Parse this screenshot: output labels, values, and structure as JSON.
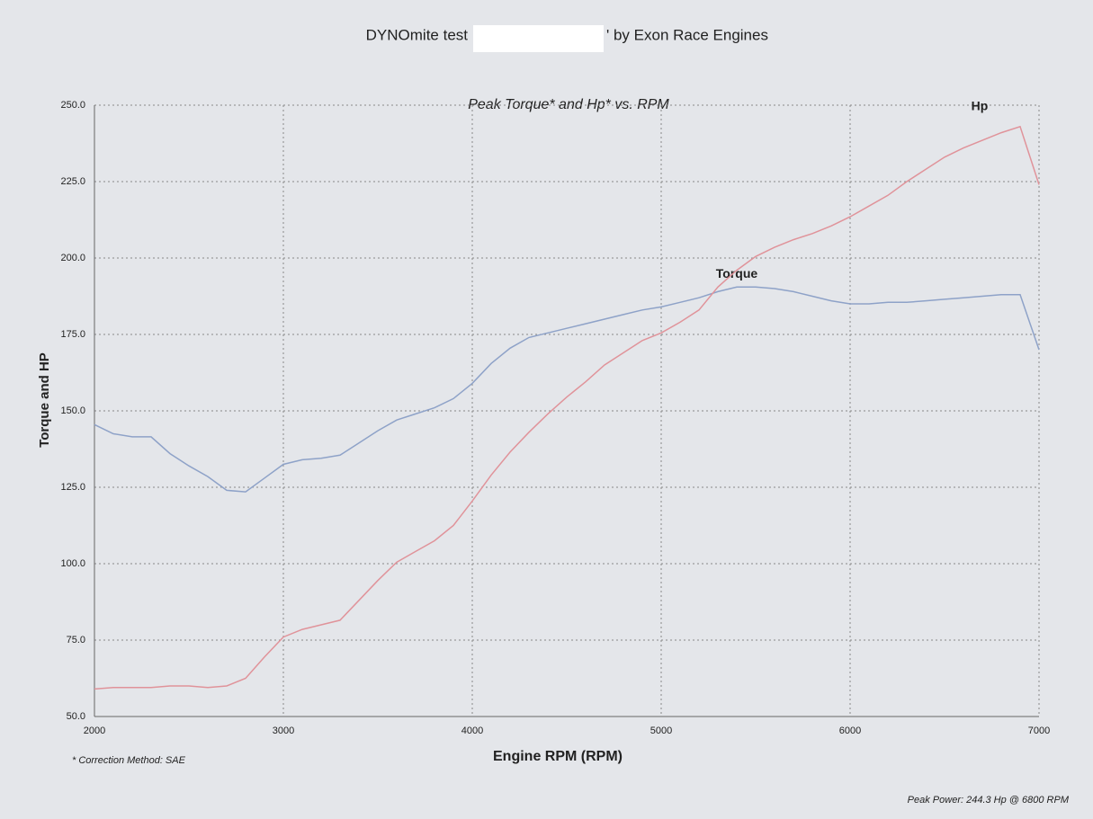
{
  "chart_data": {
    "type": "line",
    "title": "DYNOmite test",
    "title_after_redaction": "' by Exon Race Engines",
    "subtitle": "Peak Torque* and Hp* vs. RPM",
    "xlabel": "Engine RPM (RPM)",
    "ylabel": "Torque and HP",
    "footnote": "* Correction Method: SAE",
    "peak_note": "Peak Power: 244.3 Hp @ 6800 RPM",
    "x": [
      2000,
      2100,
      2200,
      2300,
      2400,
      2500,
      2600,
      2700,
      2800,
      2900,
      3000,
      3100,
      3200,
      3300,
      3400,
      3500,
      3600,
      3700,
      3800,
      3900,
      4000,
      4100,
      4200,
      4300,
      4400,
      4500,
      4600,
      4700,
      4800,
      4900,
      5000,
      5100,
      5200,
      5300,
      5400,
      5500,
      5600,
      5700,
      5800,
      5900,
      6000,
      6100,
      6200,
      6300,
      6400,
      6500,
      6600,
      6700,
      6800,
      6900,
      7000
    ],
    "series": [
      {
        "name": "Torque",
        "color": "#8ea2c8",
        "label_color": "#1f3a6e",
        "values": [
          145.5,
          142.5,
          141.5,
          141.5,
          136,
          132,
          128.5,
          124,
          123.5,
          128,
          132.5,
          134,
          134.5,
          135.5,
          139.5,
          143.5,
          147,
          149,
          151,
          154,
          159,
          165.5,
          170.5,
          174,
          175.5,
          177,
          178.5,
          180,
          181.5,
          183,
          184,
          185.5,
          187,
          189,
          190.5,
          190.5,
          190,
          189,
          187.5,
          186,
          185,
          185,
          185.5,
          185.5,
          186,
          186.5,
          187,
          187.5,
          188,
          188,
          170
        ]
      },
      {
        "name": "Hp",
        "color": "#e0939a",
        "label_color": "#c9453f",
        "values": [
          59,
          59.5,
          59.5,
          59.5,
          60,
          60,
          59.5,
          60,
          62.5,
          69.5,
          76,
          78.5,
          80,
          81.5,
          88,
          94.5,
          100.5,
          104,
          107.5,
          112.5,
          120.5,
          129,
          136.5,
          143,
          149,
          154.5,
          159.5,
          165,
          169,
          173,
          175.5,
          179,
          183,
          190.5,
          196,
          200.5,
          203.5,
          206,
          208,
          210.5,
          213.5,
          217,
          220.5,
          225,
          229,
          233,
          236,
          238.5,
          241,
          243,
          224
        ]
      }
    ],
    "xlim": [
      2000,
      7000
    ],
    "xticks": [
      2000,
      3000,
      4000,
      5000,
      6000,
      7000
    ],
    "ylim": [
      50,
      250
    ],
    "yticks": [
      {
        "value": 50,
        "label": "50.0"
      },
      {
        "value": 75,
        "label": "75.0"
      },
      {
        "value": 100,
        "label": "100.0"
      },
      {
        "value": 125,
        "label": "125.0"
      },
      {
        "value": 150,
        "label": "150.0"
      },
      {
        "value": 175,
        "label": "175.0"
      },
      {
        "value": 200,
        "label": "200.0"
      },
      {
        "value": 225,
        "label": "225.0"
      },
      {
        "value": 250,
        "label": "250.0"
      }
    ],
    "grid": true
  }
}
